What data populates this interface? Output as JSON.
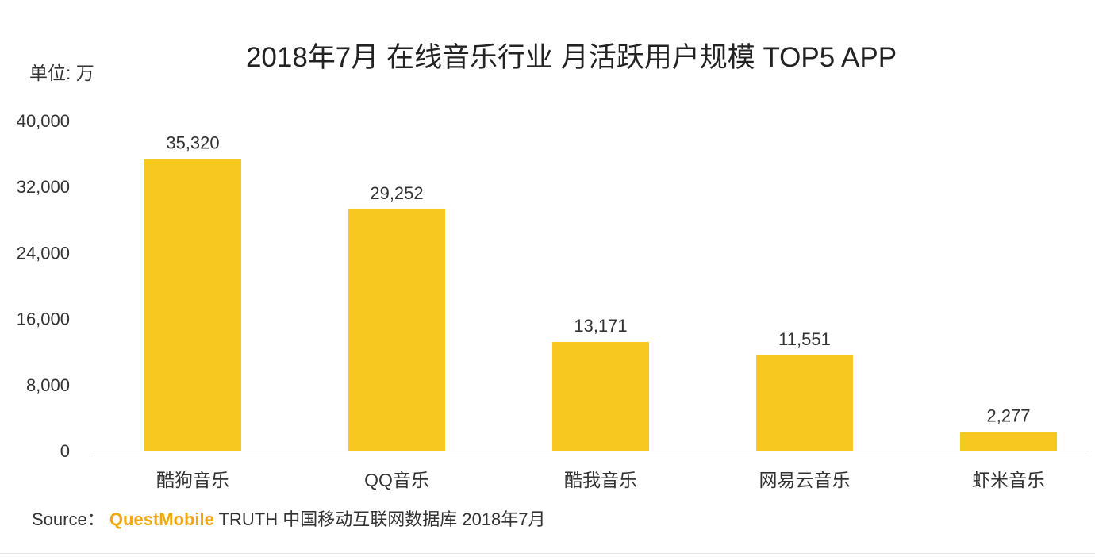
{
  "chart_data": {
    "type": "bar",
    "title": "2018年7月 在线音乐行业 月活跃用户规模 TOP5 APP",
    "unit_label": "单位: 万",
    "categories": [
      "酷狗音乐",
      "QQ音乐",
      "酷我音乐",
      "网易云音乐",
      "虾米音乐"
    ],
    "values": [
      35320,
      29252,
      13171,
      11551,
      2277
    ],
    "data_labels": [
      "35,320",
      "29,252",
      "13,171",
      "11,551",
      "2,277"
    ],
    "ylim": [
      0,
      40000
    ],
    "yticks": [
      0,
      8000,
      16000,
      24000,
      32000,
      40000
    ],
    "ytick_labels": [
      "0",
      "8,000",
      "16,000",
      "24,000",
      "32,000",
      "40,000"
    ],
    "grid": false,
    "bar_color": "#f7c820"
  },
  "source": {
    "prefix": "Source：",
    "brand": "QuestMobile",
    "text": "TRUTH 中国移动互联网数据库 2018年7月"
  },
  "colors": {
    "brand": "#f2a80c",
    "axis": "#d9d9d9"
  }
}
